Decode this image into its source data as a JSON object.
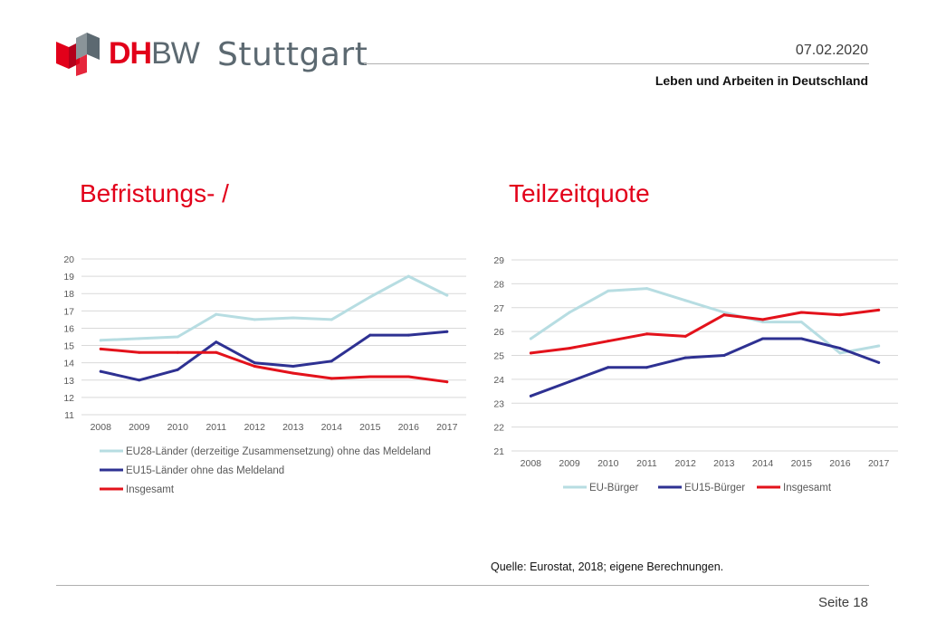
{
  "header": {
    "logo_brand_dh": "DH",
    "logo_brand_bw": "BW",
    "logo_city": "Stuttgart",
    "date": "07.02.2020",
    "subtitle": "Leben und Arbeiten in Deutschland"
  },
  "titles": {
    "left": "Befristungs- /",
    "right": "Teilzeitquote"
  },
  "colors": {
    "brand_red": "#e2001a",
    "gray": "#5c6971",
    "light_blue": "#b7dde2",
    "navy": "#2e3192",
    "red": "#e3121b"
  },
  "chart_data": [
    {
      "type": "line",
      "x": [
        "2008",
        "2009",
        "2010",
        "2011",
        "2012",
        "2013",
        "2014",
        "2015",
        "2016",
        "2017"
      ],
      "ylim": [
        11,
        20
      ],
      "yticks": [
        "11",
        "12",
        "13",
        "14",
        "15",
        "16",
        "17",
        "18",
        "19",
        "20"
      ],
      "grid": true,
      "legend_placement": "bottom",
      "series": [
        {
          "name": "EU28-Länder (derzeitige Zusammensetzung) ohne das Meldeland",
          "color": "#b7dde2",
          "values": [
            15.3,
            15.4,
            15.5,
            16.8,
            16.5,
            16.6,
            16.5,
            17.8,
            19.0,
            17.9
          ]
        },
        {
          "name": "EU15-Länder ohne das Meldeland",
          "color": "#2e3192",
          "values": [
            13.5,
            13.0,
            13.6,
            15.2,
            14.0,
            13.8,
            14.1,
            15.6,
            15.6,
            15.8
          ]
        },
        {
          "name": "Insgesamt",
          "color": "#e3121b",
          "values": [
            14.8,
            14.6,
            14.6,
            14.6,
            13.8,
            13.4,
            13.1,
            13.2,
            13.2,
            12.9
          ]
        }
      ]
    },
    {
      "type": "line",
      "x": [
        "2008",
        "2009",
        "2010",
        "2011",
        "2012",
        "2013",
        "2014",
        "2015",
        "2016",
        "2017"
      ],
      "ylim": [
        21,
        29
      ],
      "yticks": [
        "21",
        "22",
        "23",
        "24",
        "25",
        "26",
        "27",
        "28",
        "29"
      ],
      "grid": true,
      "legend_placement": "bottom",
      "series": [
        {
          "name": "EU-Bürger",
          "color": "#b7dde2",
          "values": [
            25.7,
            26.8,
            27.7,
            27.8,
            27.3,
            26.8,
            26.4,
            26.4,
            25.1,
            25.4
          ]
        },
        {
          "name": "EU15-Bürger",
          "color": "#2e3192",
          "values": [
            23.3,
            23.9,
            24.5,
            24.5,
            24.9,
            25.0,
            25.7,
            25.7,
            25.3,
            24.7
          ]
        },
        {
          "name": "Insgesamt",
          "color": "#e3121b",
          "values": [
            25.1,
            25.3,
            25.6,
            25.9,
            25.8,
            26.7,
            26.5,
            26.8,
            26.7,
            26.9
          ]
        }
      ]
    }
  ],
  "footer": {
    "source": "Quelle: Eurostat, 2018; eigene Berechnungen.",
    "page": "Seite 18"
  }
}
